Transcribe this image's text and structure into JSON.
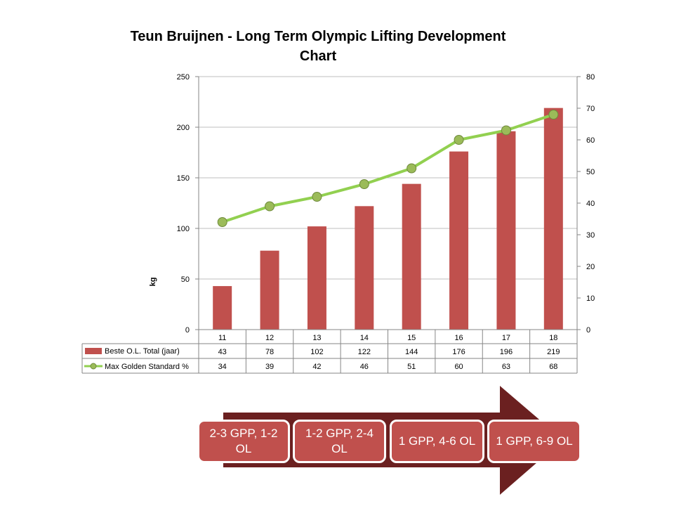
{
  "chart_data": {
    "type": "bar",
    "title_line1": "Teun Bruijnen -  Long Term Olympic Lifting Development",
    "title_line2": "Chart",
    "ylabel": "kg",
    "categories": [
      "11",
      "12",
      "13",
      "14",
      "15",
      "16",
      "17",
      "18"
    ],
    "ylim": [
      0,
      250
    ],
    "yticks": [
      "0",
      "50",
      "100",
      "150",
      "200",
      "250"
    ],
    "y2lim": [
      0,
      80
    ],
    "y2ticks": [
      "0",
      "10",
      "20",
      "30",
      "40",
      "50",
      "60",
      "70",
      "80"
    ],
    "grid": true,
    "legend": "data-table",
    "series": [
      {
        "name": "Beste O.L. Total (jaar)",
        "type": "bar",
        "axis": "left",
        "color": "#c0504d",
        "values": [
          43,
          78,
          102,
          122,
          144,
          176,
          196,
          219
        ]
      },
      {
        "name": "Max Golden Standard %",
        "type": "line",
        "axis": "right",
        "color": "#92d050",
        "marker_color": "#9bbb59",
        "values": [
          34,
          39,
          42,
          46,
          51,
          60,
          63,
          68
        ]
      }
    ]
  },
  "stages": {
    "arrow_color": "#6b2020",
    "box_color": "#c0504d",
    "labels": [
      "2-3 GPP, 1-2 OL",
      "1-2 GPP, 2-4 OL",
      "1 GPP, 4-6 OL",
      "1 GPP, 6-9 OL"
    ]
  }
}
